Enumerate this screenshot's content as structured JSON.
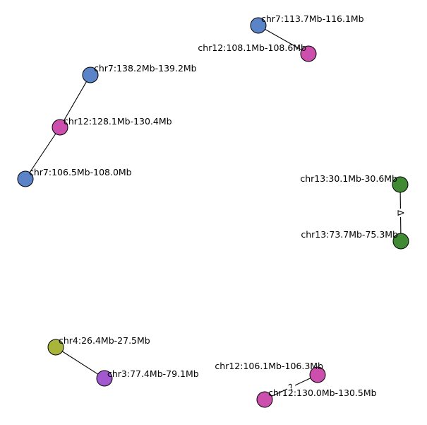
{
  "graph": {
    "colors": {
      "chr7": "#5b84c8",
      "chr12": "#cc4fad",
      "chr13": "#3f8a33",
      "chr4": "#a8b53a",
      "chr3": "#a259cf",
      "edge": "#000000"
    },
    "nodes": [
      {
        "id": "n1",
        "label": "chr7:113.7Mb-116.1Mb",
        "group": "chr7"
      },
      {
        "id": "n2",
        "label": "chr12:108.1Mb-108.6Mb",
        "group": "chr12"
      },
      {
        "id": "n3",
        "label": "chr7:138.2Mb-139.2Mb",
        "group": "chr7"
      },
      {
        "id": "n4",
        "label": "chr12:128.1Mb-130.4Mb",
        "group": "chr12"
      },
      {
        "id": "n5",
        "label": "chr7:106.5Mb-108.0Mb",
        "group": "chr7"
      },
      {
        "id": "n6",
        "label": "chr13:30.1Mb-30.6Mb",
        "group": "chr13"
      },
      {
        "id": "n7",
        "label": "chr13:73.7Mb-75.3Mb",
        "group": "chr13"
      },
      {
        "id": "n8",
        "label": "chr4:26.4Mb-27.5Mb",
        "group": "chr4"
      },
      {
        "id": "n9",
        "label": "chr3:77.4Mb-79.1Mb",
        "group": "chr3"
      },
      {
        "id": "n10",
        "label": "chr12:106.1Mb-106.3Mb",
        "group": "chr12"
      },
      {
        "id": "n11",
        "label": "chr12:130.0Mb-130.5Mb",
        "group": "chr12"
      }
    ],
    "edges": [
      {
        "source": "n1",
        "target": "n2",
        "label": ""
      },
      {
        "source": "n3",
        "target": "n4",
        "label": ""
      },
      {
        "source": "n4",
        "target": "n5",
        "label": ""
      },
      {
        "source": "n6",
        "target": "n7",
        "label": "Δ"
      },
      {
        "source": "n8",
        "target": "n9",
        "label": ""
      },
      {
        "source": "n10",
        "target": "n11",
        "label": "?"
      }
    ]
  }
}
